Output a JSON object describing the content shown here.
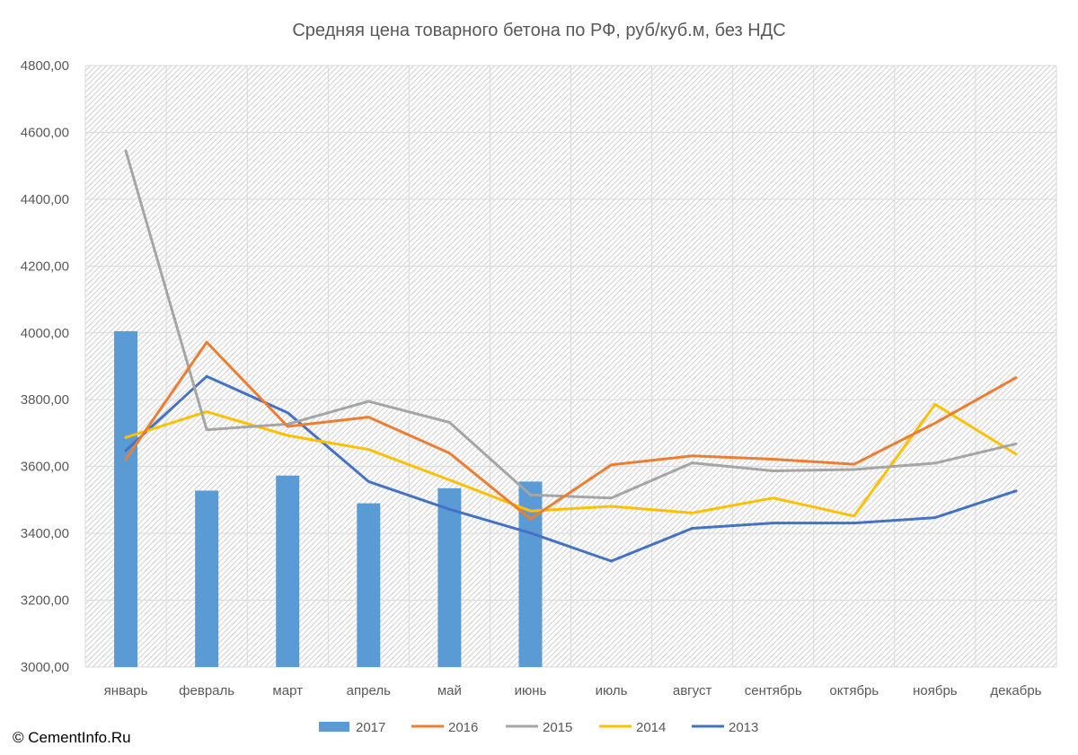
{
  "chart_data": {
    "type": "bar+line",
    "title": "Средняя цена товарного бетона по РФ, руб/куб.м, без НДС",
    "categories": [
      "январь",
      "февраль",
      "март",
      "апрель",
      "май",
      "июнь",
      "июль",
      "август",
      "сентябрь",
      "октябрь",
      "ноябрь",
      "декабрь"
    ],
    "ylim": [
      3000,
      4800
    ],
    "yticks": [
      "3000,00",
      "3200,00",
      "3400,00",
      "3600,00",
      "3800,00",
      "4000,00",
      "4200,00",
      "4400,00",
      "4600,00",
      "4800,00"
    ],
    "grid": true,
    "legend_position": "bottom",
    "series": [
      {
        "name": "2017",
        "kind": "bar",
        "color": "#5B9BD5",
        "values": [
          4005,
          3528,
          3573,
          3490,
          3535,
          3555,
          null,
          null,
          null,
          null,
          null,
          null
        ]
      },
      {
        "name": "2016",
        "kind": "line",
        "color": "#ED7D31",
        "values": [
          3622,
          3972,
          3720,
          3748,
          3640,
          3443,
          3605,
          3632,
          3622,
          3607,
          3730,
          3866
        ]
      },
      {
        "name": "2015",
        "kind": "line",
        "color": "#A5A5A5",
        "values": [
          4545,
          3710,
          3727,
          3795,
          3732,
          3515,
          3506,
          3611,
          3587,
          3591,
          3610,
          3668
        ]
      },
      {
        "name": "2014",
        "kind": "line",
        "color": "#FFC000",
        "values": [
          3687,
          3764,
          3693,
          3651,
          3560,
          3467,
          3481,
          3461,
          3506,
          3452,
          3786,
          3637
        ]
      },
      {
        "name": "2013",
        "kind": "line",
        "color": "#4472C4",
        "values": [
          3648,
          3870,
          3761,
          3555,
          3472,
          3401,
          3317,
          3415,
          3431,
          3431,
          3447,
          3527
        ]
      }
    ]
  },
  "copyright": "© CementInfo.Ru"
}
